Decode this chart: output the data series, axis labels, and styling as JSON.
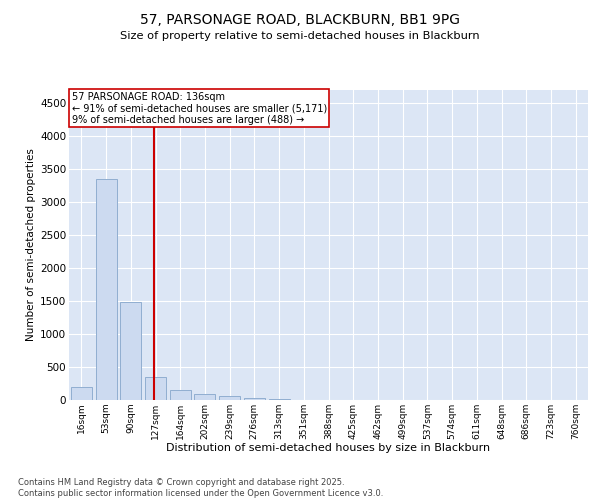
{
  "title_line1": "57, PARSONAGE ROAD, BLACKBURN, BB1 9PG",
  "title_line2": "Size of property relative to semi-detached houses in Blackburn",
  "xlabel": "Distribution of semi-detached houses by size in Blackburn",
  "ylabel": "Number of semi-detached properties",
  "bins": [
    "16sqm",
    "53sqm",
    "90sqm",
    "127sqm",
    "164sqm",
    "202sqm",
    "239sqm",
    "276sqm",
    "313sqm",
    "351sqm",
    "388sqm",
    "425sqm",
    "462sqm",
    "499sqm",
    "537sqm",
    "574sqm",
    "611sqm",
    "648sqm",
    "686sqm",
    "723sqm",
    "760sqm"
  ],
  "values": [
    200,
    3350,
    1480,
    350,
    155,
    90,
    55,
    30,
    15,
    5,
    3,
    0,
    0,
    0,
    0,
    0,
    0,
    0,
    0,
    0,
    0
  ],
  "bar_color": "#ccdaf0",
  "bar_edge_color": "#90aed0",
  "vline_color": "#cc0000",
  "vline_pos": 2.93,
  "annotation_title": "57 PARSONAGE ROAD: 136sqm",
  "annotation_line1": "← 91% of semi-detached houses are smaller (5,171)",
  "annotation_line2": "9% of semi-detached houses are larger (488) →",
  "ylim": [
    0,
    4700
  ],
  "yticks": [
    0,
    500,
    1000,
    1500,
    2000,
    2500,
    3000,
    3500,
    4000,
    4500
  ],
  "plot_bg_color": "#dce6f5",
  "footer_line1": "Contains HM Land Registry data © Crown copyright and database right 2025.",
  "footer_line2": "Contains public sector information licensed under the Open Government Licence v3.0."
}
